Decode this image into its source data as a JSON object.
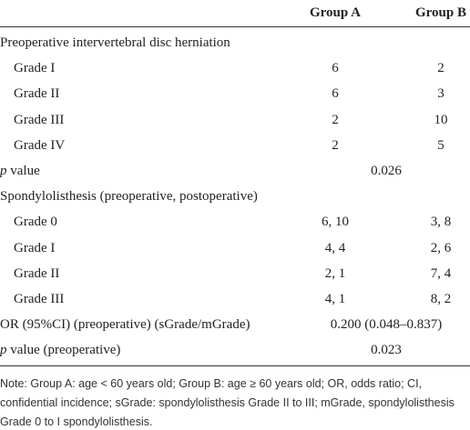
{
  "header": {
    "col_a": "Group A",
    "col_b": "Group B"
  },
  "rows": [
    {
      "label": "Preoperative intervertebral disc herniation"
    },
    {
      "label": "Grade I",
      "a": "6",
      "b": "2"
    },
    {
      "label": "Grade II",
      "a": "6",
      "b": "3"
    },
    {
      "label": "Grade III",
      "a": "2",
      "b": "10"
    },
    {
      "label": "Grade IV",
      "a": "2",
      "b": "5"
    },
    {
      "italic": "p",
      "label": " value",
      "combined": "0.026"
    },
    {
      "label": "Spondylolisthesis (preoperative, postoperative)"
    },
    {
      "label": "Grade 0",
      "a": "6, 10",
      "b": "3, 8"
    },
    {
      "label": "Grade I",
      "a": "4, 4",
      "b": "2, 6"
    },
    {
      "label": "Grade II",
      "a": "2, 1",
      "b": "7, 4"
    },
    {
      "label": "Grade III",
      "a": "4, 1",
      "b": "8, 2"
    },
    {
      "label": "OR (95%CI) (preoperative) (sGrade/mGrade)",
      "combined": "0.200 (0.048–0.837)"
    },
    {
      "italic": "p",
      "label": " value (preoperative)",
      "combined": "0.023"
    }
  ],
  "note": "Note: Group A: age < 60 years old; Group B: age ≥ 60 years old; OR, odds ratio; CI, confidential incidence; sGrade: spondylolisthesis Grade II to III; mGrade, spondylolisthesis Grade 0 to I spondylolisthesis."
}
